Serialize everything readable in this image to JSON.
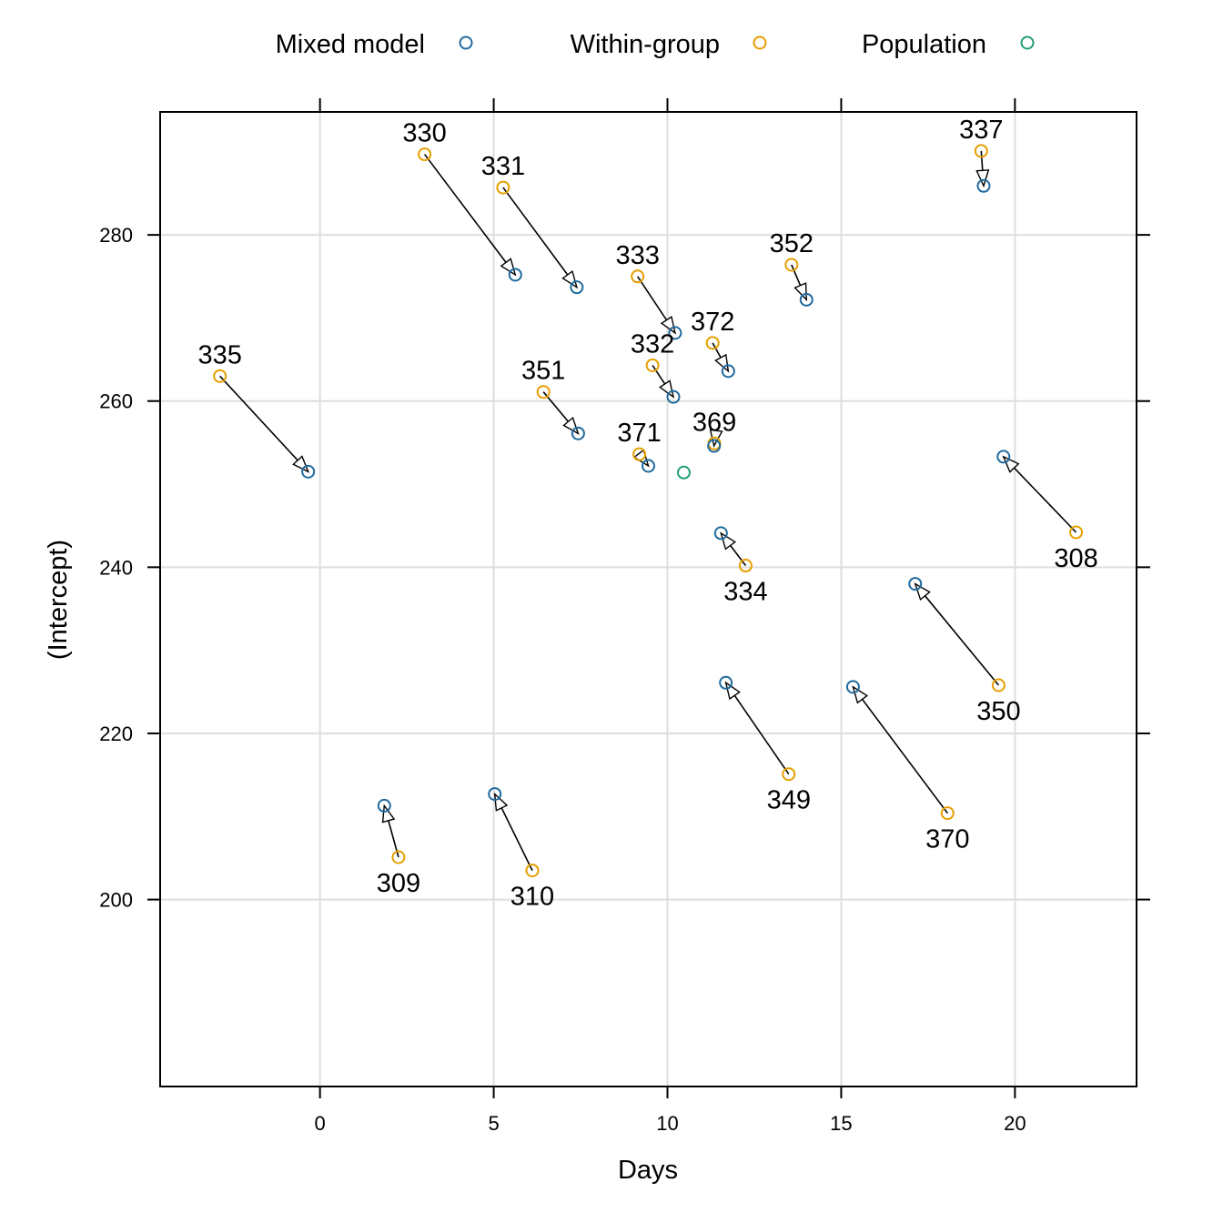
{
  "chart_data": {
    "type": "scatter",
    "xlabel": "Days",
    "ylabel": "(Intercept)",
    "xlim": [
      -4.6,
      23.5
    ],
    "ylim": [
      177.5,
      294.8
    ],
    "x_ticks": [
      0,
      5,
      10,
      15,
      20
    ],
    "y_ticks": [
      200,
      220,
      240,
      260,
      280
    ],
    "grid": true,
    "legend_position": "top",
    "legend": [
      {
        "name": "Mixed model",
        "color": "#1f6a9e"
      },
      {
        "name": "Within-group",
        "color": "#e69f00"
      },
      {
        "name": "Population",
        "color": "#229e77"
      }
    ],
    "population": {
      "x": 10.47,
      "y": 251.4
    },
    "subjects": [
      {
        "id": "308",
        "within": {
          "x": 21.76,
          "y": 244.2
        },
        "mixed": {
          "x": 19.67,
          "y": 253.3
        }
      },
      {
        "id": "309",
        "within": {
          "x": 2.26,
          "y": 205.1
        },
        "mixed": {
          "x": 1.85,
          "y": 211.3
        }
      },
      {
        "id": "310",
        "within": {
          "x": 6.11,
          "y": 203.5
        },
        "mixed": {
          "x": 5.03,
          "y": 212.7
        }
      },
      {
        "id": "330",
        "within": {
          "x": 3.01,
          "y": 289.7
        },
        "mixed": {
          "x": 5.62,
          "y": 275.2
        }
      },
      {
        "id": "331",
        "within": {
          "x": 5.27,
          "y": 285.7
        },
        "mixed": {
          "x": 7.39,
          "y": 273.7
        }
      },
      {
        "id": "332",
        "within": {
          "x": 9.57,
          "y": 264.3
        },
        "mixed": {
          "x": 10.17,
          "y": 260.5
        }
      },
      {
        "id": "333",
        "within": {
          "x": 9.14,
          "y": 275.0
        },
        "mixed": {
          "x": 10.22,
          "y": 268.2
        }
      },
      {
        "id": "334",
        "within": {
          "x": 12.25,
          "y": 240.2
        },
        "mixed": {
          "x": 11.54,
          "y": 244.1
        }
      },
      {
        "id": "335",
        "within": {
          "x": -2.88,
          "y": 263.0
        },
        "mixed": {
          "x": -0.34,
          "y": 251.5
        }
      },
      {
        "id": "337",
        "within": {
          "x": 19.03,
          "y": 290.1
        },
        "mixed": {
          "x": 19.1,
          "y": 285.9
        }
      },
      {
        "id": "349",
        "within": {
          "x": 13.49,
          "y": 215.1
        },
        "mixed": {
          "x": 11.68,
          "y": 226.1
        }
      },
      {
        "id": "350",
        "within": {
          "x": 19.53,
          "y": 225.8
        },
        "mixed": {
          "x": 17.13,
          "y": 238.0
        }
      },
      {
        "id": "351",
        "within": {
          "x": 6.43,
          "y": 261.1
        },
        "mixed": {
          "x": 7.43,
          "y": 256.1
        }
      },
      {
        "id": "352",
        "within": {
          "x": 13.57,
          "y": 276.4
        },
        "mixed": {
          "x": 14.0,
          "y": 272.2
        }
      },
      {
        "id": "369",
        "within": {
          "x": 11.35,
          "y": 254.9
        },
        "mixed": {
          "x": 11.34,
          "y": 254.6
        }
      },
      {
        "id": "370",
        "within": {
          "x": 18.06,
          "y": 210.4
        },
        "mixed": {
          "x": 15.34,
          "y": 225.6
        }
      },
      {
        "id": "371",
        "within": {
          "x": 9.19,
          "y": 253.6
        },
        "mixed": {
          "x": 9.45,
          "y": 252.2
        }
      },
      {
        "id": "372",
        "within": {
          "x": 11.3,
          "y": 267.0
        },
        "mixed": {
          "x": 11.75,
          "y": 263.6
        }
      }
    ]
  }
}
